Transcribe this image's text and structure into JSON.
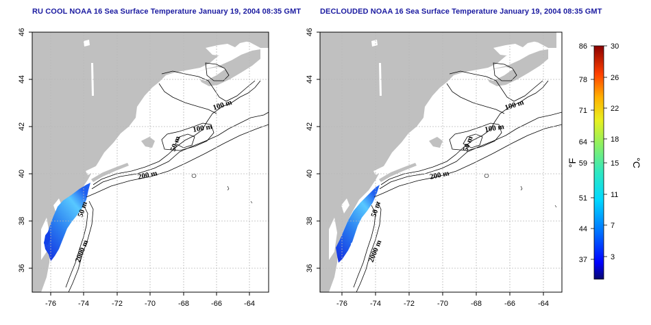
{
  "panels": [
    {
      "title": "RU COOL NOAA 16 Sea Surface Temperature January 19, 2004 08:35 GMT",
      "x_ticks": [
        "-76",
        "-74",
        "-72",
        "-70",
        "-68",
        "-66",
        "-64"
      ],
      "y_ticks": [
        "46",
        "44",
        "42",
        "40",
        "38",
        "36"
      ],
      "contour_labels": [
        "100 m",
        "100 m",
        "50 m",
        "200 m",
        "50 m",
        "2000 m"
      ]
    },
    {
      "title": "DECLOUDED NOAA 16 Sea Surface Temperature January 19, 2004 08:35 GMT",
      "x_ticks": [
        "-76",
        "-74",
        "-72",
        "-70",
        "-68",
        "-66",
        "-64"
      ],
      "y_ticks": [
        "46",
        "44",
        "42",
        "40",
        "38",
        "36"
      ],
      "contour_labels": [
        "100 m",
        "100 m",
        "50 m",
        "200 m",
        "50 m",
        "2000 m"
      ]
    }
  ],
  "colorbar": {
    "fahrenheit_label": "°F",
    "celsius_label": "°C",
    "fahrenheit_ticks": [
      "86",
      "78",
      "71",
      "64",
      "59",
      "51",
      "44",
      "37"
    ],
    "celsius_ticks": [
      "30",
      "26",
      "22",
      "18",
      "15",
      "11",
      "7",
      "3"
    ]
  },
  "colors": {
    "title": "#1a1aa0",
    "land": "#c0c0c0",
    "ocean": "#ffffff",
    "sst_cold": "#1030e0",
    "sst_warm": "#50c8ff"
  }
}
